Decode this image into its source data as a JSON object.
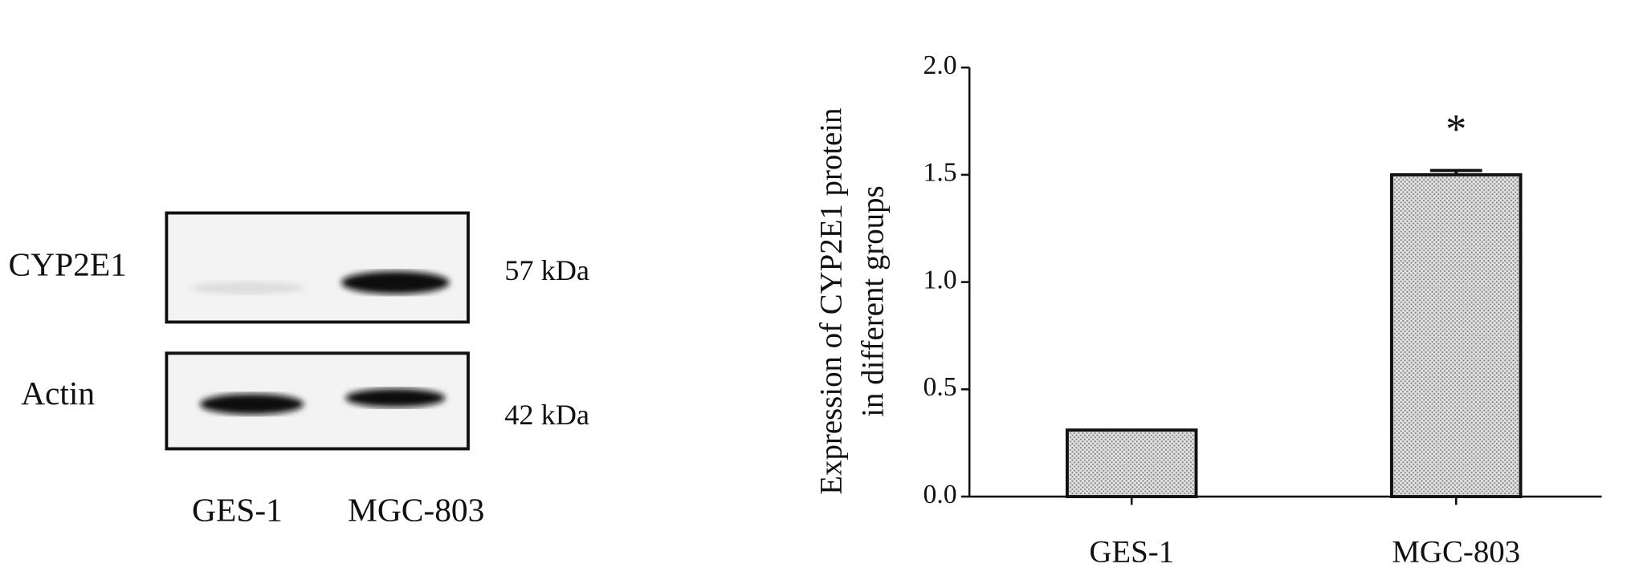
{
  "blot": {
    "rows": [
      {
        "label": "CYP2E1",
        "size": "57 kDa"
      },
      {
        "label": "Actin",
        "size": "42 kDa"
      }
    ],
    "lanes": [
      "GES-1",
      "MGC-803"
    ]
  },
  "chart_data": {
    "type": "bar",
    "ylabel": [
      "Expression of  CYP2E1 protein",
      "in different groups"
    ],
    "categories": [
      "GES-1",
      "MGC-803"
    ],
    "values": [
      0.31,
      1.5
    ],
    "errors": [
      null,
      0.02
    ],
    "color": "#c8c8c8",
    "annotation": "*",
    "ylim": [
      0,
      2
    ],
    "yticks": [
      {
        "value": 0,
        "label": "0.0"
      },
      0.5,
      {
        "value": 1,
        "label": "1.0"
      },
      1.5,
      {
        "value": 2,
        "label": "2.0"
      }
    ],
    "grid": false
  }
}
